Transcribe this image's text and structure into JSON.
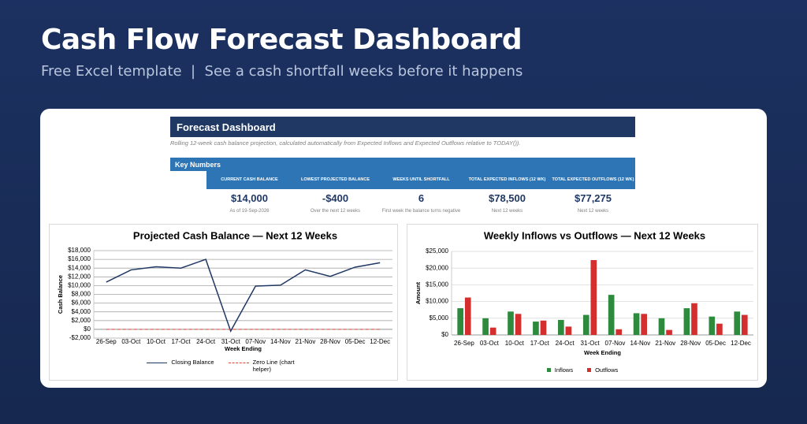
{
  "header": {
    "title": "Cash Flow Forecast Dashboard",
    "subtitle": "Free Excel template  |  See a cash shortfall weeks before it happens"
  },
  "dashboard": {
    "title": "Forecast Dashboard",
    "note": "Rolling 12-week cash balance projection, calculated automatically from Expected Inflows and Expected Outflows relative to TODAY()).",
    "section": "Key Numbers",
    "metrics": [
      {
        "label": "CURRENT CASH BALANCE",
        "value": "$14,000",
        "note": "As of 19-Sep-2026"
      },
      {
        "label": "LOWEST PROJECTED BALANCE",
        "value": "-$400",
        "note": "Over the next 12 weeks"
      },
      {
        "label": "WEEKS UNTIL SHORTFALL",
        "value": "6",
        "note": "First week the balance turns negative"
      },
      {
        "label": "TOTAL EXPECTED INFLOWS (12 WK)",
        "value": "$78,500",
        "note": "Next 12 weeks"
      },
      {
        "label": "TOTAL EXPECTED OUTFLOWS (12 WK)",
        "value": "$77,275",
        "note": "Next 12 weeks"
      }
    ]
  },
  "chart_data": [
    {
      "type": "line",
      "title": "Projected Cash Balance — Next 12 Weeks",
      "x_label": "Week Ending",
      "y_label": "Cash Balance",
      "categories": [
        "26-Sep",
        "03-Oct",
        "10-Oct",
        "17-Oct",
        "24-Oct",
        "31-Oct",
        "07-Nov",
        "14-Nov",
        "21-Nov",
        "28-Nov",
        "05-Dec",
        "12-Dec"
      ],
      "ylim": [
        -2000,
        18000
      ],
      "yticks": [
        {
          "value": -2000,
          "label": "-$2,000"
        },
        {
          "value": 0,
          "label": "$0"
        },
        {
          "value": 2000,
          "label": "$2,000"
        },
        {
          "value": 4000,
          "label": "$4,000"
        },
        {
          "value": 6000,
          "label": "$6,000"
        },
        {
          "value": 8000,
          "label": "$8,000"
        },
        {
          "value": 10000,
          "label": "$10,000"
        },
        {
          "value": 12000,
          "label": "$12,000"
        },
        {
          "value": 14000,
          "label": "$14,000"
        },
        {
          "value": 16000,
          "label": "$16,000"
        },
        {
          "value": 18000,
          "label": "$18,000"
        }
      ],
      "grid": true,
      "legend": "bottom",
      "series": [
        {
          "name": "Closing Balance",
          "color": "#1f3864",
          "values": [
            10800,
            13600,
            14300,
            14000,
            16000,
            -400,
            9900,
            10100,
            13600,
            12100,
            14225,
            15225
          ]
        },
        {
          "name": "Zero Line (chart helper)",
          "color": "#e0403a",
          "dashed": true,
          "values": [
            0,
            0,
            0,
            0,
            0,
            0,
            0,
            0,
            0,
            0,
            0,
            0
          ]
        }
      ]
    },
    {
      "type": "bar",
      "title": "Weekly Inflows vs Outflows — Next 12 Weeks",
      "x_label": "Week Ending",
      "y_label": "Amount",
      "categories": [
        "26-Sep",
        "03-Oct",
        "10-Oct",
        "17-Oct",
        "24-Oct",
        "31-Oct",
        "07-Nov",
        "14-Nov",
        "21-Nov",
        "28-Nov",
        "05-Dec",
        "12-Dec"
      ],
      "ylim": [
        0,
        25000
      ],
      "yticks": [
        {
          "value": 0,
          "label": "$0"
        },
        {
          "value": 5000,
          "label": "$5,000"
        },
        {
          "value": 10000,
          "label": "$10,000"
        },
        {
          "value": 15000,
          "label": "$15,000"
        },
        {
          "value": 20000,
          "label": "$20,000"
        },
        {
          "value": 25000,
          "label": "$25,000"
        }
      ],
      "grid": true,
      "legend": "bottom",
      "series": [
        {
          "name": "Inflows",
          "color": "#2e8b3e",
          "values": [
            8000,
            5000,
            7000,
            4000,
            4500,
            6000,
            12000,
            6500,
            5000,
            8000,
            5500,
            7000
          ]
        },
        {
          "name": "Outflows",
          "color": "#d32f2f",
          "values": [
            11200,
            2200,
            6300,
            4300,
            2500,
            22400,
            1700,
            6300,
            1500,
            9500,
            3375,
            6000
          ]
        }
      ]
    }
  ]
}
